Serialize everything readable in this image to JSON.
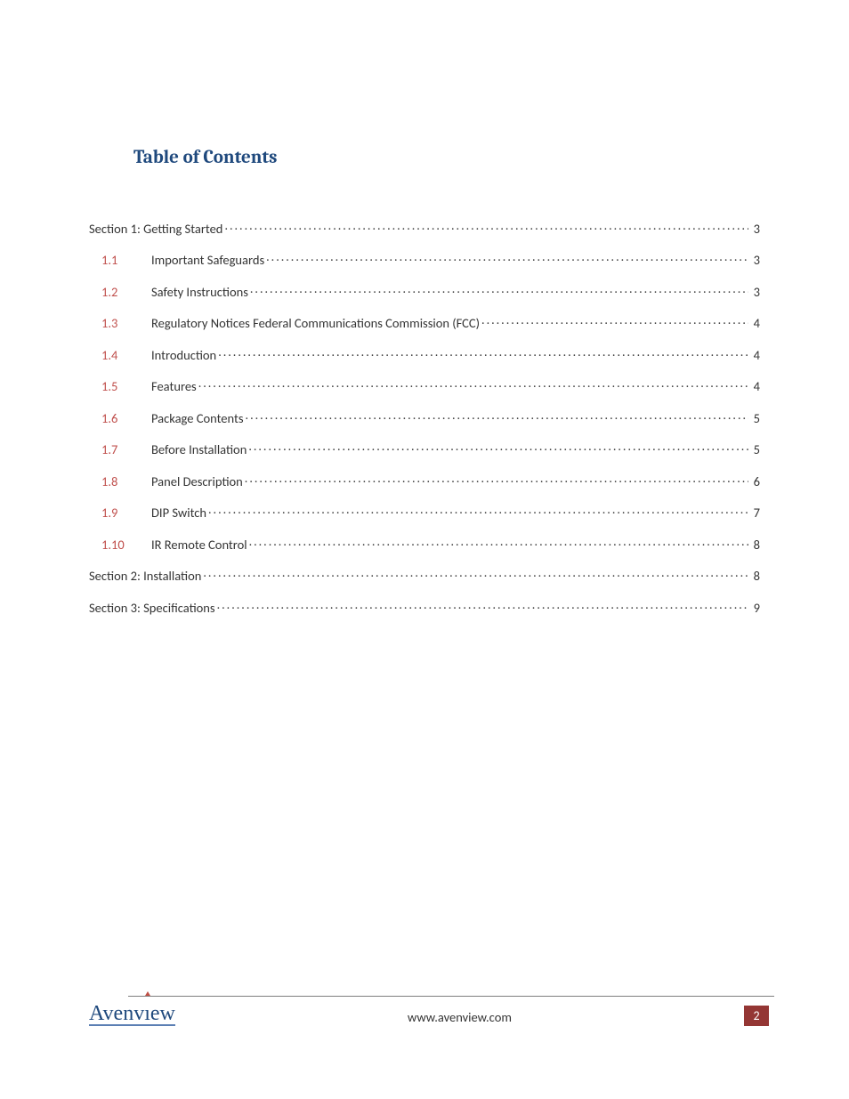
{
  "title": "Table of Contents",
  "title_color": "#1f497d",
  "brand_color": "#1f497d",
  "brand_accent": "#c05046",
  "badge_bg": "#943634",
  "footer_url": "www.avenview.com",
  "page_number": "2",
  "brand_name": "Avenview",
  "toc": [
    {
      "level": 1,
      "number": "",
      "label": "Section 1: Getting Started",
      "page": "3"
    },
    {
      "level": 2,
      "number": "1.1",
      "label": "Important Safeguards",
      "page": "3"
    },
    {
      "level": 2,
      "number": "1.2",
      "label": "Safety Instructions",
      "page": "3"
    },
    {
      "level": 2,
      "number": "1.3",
      "label": "Regulatory Notices Federal Communications Commission (FCC)",
      "page": "4"
    },
    {
      "level": 2,
      "number": "1.4",
      "label": "Introduction",
      "page": "4"
    },
    {
      "level": 2,
      "number": "1.5",
      "label": "Features",
      "page": "4"
    },
    {
      "level": 2,
      "number": "1.6",
      "label": "Package Contents",
      "page": "5"
    },
    {
      "level": 2,
      "number": "1.7",
      "label": "Before Installation",
      "page": "5"
    },
    {
      "level": 2,
      "number": "1.8",
      "label": "Panel Description",
      "page": "6"
    },
    {
      "level": 2,
      "number": "1.9",
      "label": "DIP Switch",
      "page": "7"
    },
    {
      "level": 2,
      "number": "1.10",
      "label": "IR Remote Control",
      "page": "8"
    },
    {
      "level": 1,
      "number": "",
      "label": "Section 2: Installation",
      "page": "8"
    },
    {
      "level": 1,
      "number": "",
      "label": "Section 3: Specifications",
      "page": "9"
    }
  ]
}
